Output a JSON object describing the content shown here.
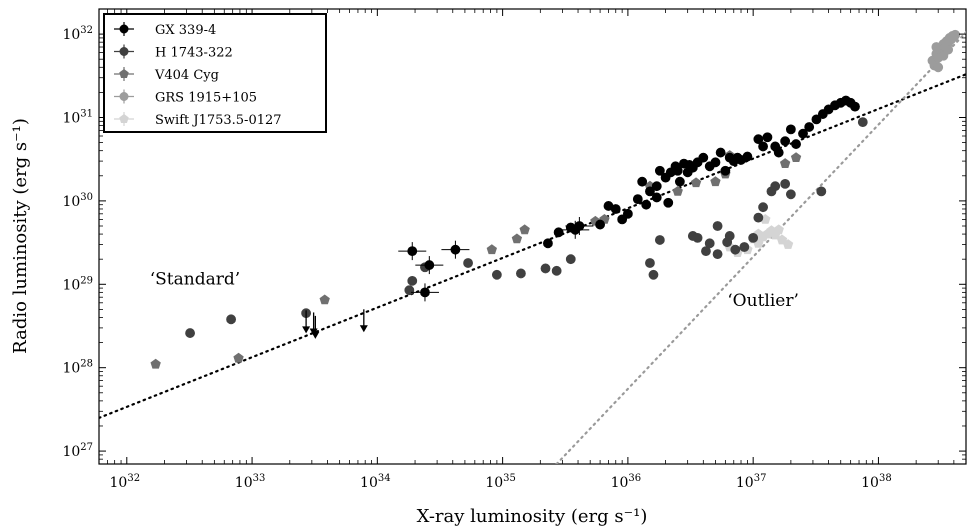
{
  "chart_data": {
    "type": "scatter",
    "xlabel": "X-ray luminosity (erg s⁻¹)",
    "ylabel": "Radio luminosity (erg s⁻¹)",
    "x_scale": "log",
    "y_scale": "log",
    "xlim": [
      6e+31,
      5e+38
    ],
    "ylim": [
      7e+26,
      2e+32
    ],
    "grid": false,
    "legend_placement": "top-left",
    "x_ticks": [
      {
        "base": "10",
        "exp": "32",
        "value": 1e+32
      },
      {
        "base": "10",
        "exp": "33",
        "value": 1e+33
      },
      {
        "base": "10",
        "exp": "34",
        "value": 1e+34
      },
      {
        "base": "10",
        "exp": "35",
        "value": 1e+35
      },
      {
        "base": "10",
        "exp": "36",
        "value": 1e+36
      },
      {
        "base": "10",
        "exp": "37",
        "value": 1e+37
      },
      {
        "base": "10",
        "exp": "38",
        "value": 1e+38
      }
    ],
    "y_ticks": [
      {
        "base": "10",
        "exp": "27",
        "value": 1e+27
      },
      {
        "base": "10",
        "exp": "28",
        "value": 1e+28
      },
      {
        "base": "10",
        "exp": "29",
        "value": 1e+29
      },
      {
        "base": "10",
        "exp": "30",
        "value": 1e+30
      },
      {
        "base": "10",
        "exp": "31",
        "value": 1e+31
      },
      {
        "base": "10",
        "exp": "32",
        "value": 1e+32
      }
    ],
    "annotations": [
      {
        "text": "‘Standard’",
        "x": 3.5e+32,
        "y": 1e+29
      },
      {
        "text": "‘Outlier’",
        "x": 1.2e+37,
        "y": 5.5e+28
      }
    ],
    "fit_lines": [
      {
        "name": "standard",
        "x": [
          6e+31,
          5e+38
        ],
        "y": [
          2.5e+27,
          3.3e+31
        ],
        "color": "#000000"
      },
      {
        "name": "outlier",
        "x": [
          2.7e+35,
          5e+38
        ],
        "y": [
          7e+26,
          1.05e+32
        ],
        "color": "#9a9a9a"
      }
    ],
    "series": [
      {
        "name": "GX 339-4",
        "color": "#000000",
        "marker": "circle",
        "x": [
          1.9e+34,
          2.4e+34,
          2.6e+34,
          4.2e+34,
          2.3e+35,
          2.8e+35,
          3.5e+35,
          3.8e+35,
          4.1e+35,
          6e+35,
          7e+35,
          8e+35,
          9e+35,
          1e+36,
          1.2e+36,
          1.4e+36,
          1.5e+36,
          1.7e+36,
          1.8e+36,
          2e+36,
          2.2e+36,
          2.4e+36,
          2.6e+36,
          2.8e+36,
          3e+36,
          3.3e+36,
          3.6e+36,
          4e+36,
          4.5e+36,
          5e+36,
          5.5e+36,
          6e+36,
          6.5e+36,
          7e+36,
          7.5e+36,
          8e+36,
          9e+36,
          1.1e+37,
          1.2e+37,
          1.3e+37,
          1.5e+37,
          1.6e+37,
          1.8e+37,
          2e+37,
          2.2e+37,
          2.5e+37,
          2.8e+37,
          3.2e+37,
          3.6e+37,
          4e+37,
          4.5e+37,
          5e+37,
          5.5e+37,
          6e+37,
          6.5e+37,
          1.7e+36,
          2.1e+36,
          1.3e+36,
          2.5e+36,
          3.1e+36
        ],
        "y": [
          2.5e+29,
          8e+28,
          1.7e+29,
          2.6e+29,
          3.1e+29,
          4.2e+29,
          4.8e+29,
          4.5e+29,
          5e+29,
          5.2e+29,
          8.7e+29,
          8e+29,
          6e+29,
          7e+29,
          1.05e+30,
          9e+29,
          1.3e+30,
          1.1e+30,
          2.3e+30,
          1.9e+30,
          2.2e+30,
          2.6e+30,
          1.7e+30,
          2.8e+30,
          2.2e+30,
          2.5e+30,
          2.9e+30,
          3.3e+30,
          2.6e+30,
          2.9e+30,
          3.8e+30,
          2.3e+30,
          3.3e+30,
          3e+30,
          3.3e+30,
          3.1e+30,
          3.4e+30,
          5.5e+30,
          4.5e+30,
          5.8e+30,
          4.5e+30,
          3.8e+30,
          5.2e+30,
          7.2e+30,
          4.8e+30,
          6.4e+30,
          7.7e+30,
          9.5e+30,
          1.1e+31,
          1.25e+31,
          1.4e+31,
          1.5e+31,
          1.6e+31,
          1.5e+31,
          1.35e+31,
          1.5e+30,
          9.5e+29,
          1.7e+30,
          2.3e+30,
          2.7e+30
        ]
      },
      {
        "name": "H 1743-322",
        "color": "#404040",
        "marker": "circle",
        "x": [
          3.2e+32,
          6.8e+32,
          2.7e+33,
          1.8e+34,
          1.9e+34,
          2.4e+34,
          5.3e+34,
          9e+34,
          1.4e+35,
          2.2e+35,
          2.7e+35,
          3.5e+35,
          1.5e+36,
          1.6e+36,
          1.8e+36,
          3.3e+36,
          3.6e+36,
          4.2e+36,
          4.5e+36,
          5.2e+36,
          6.2e+36,
          6.5e+36,
          7.2e+36,
          8.5e+36,
          1e+37,
          1.1e+37,
          1.2e+37,
          1.4e+37,
          1.5e+37,
          1.8e+37,
          2e+37,
          3.5e+37,
          7.5e+37,
          5.2e+36
        ],
        "y": [
          2.6e+28,
          3.8e+28,
          4.5e+28,
          8.5e+28,
          1.1e+29,
          1.6e+29,
          1.8e+29,
          1.3e+29,
          1.35e+29,
          1.55e+29,
          1.45e+29,
          2e+29,
          1.8e+29,
          1.3e+29,
          3.4e+29,
          3.8e+29,
          3.6e+29,
          2.5e+29,
          3.1e+29,
          2.3e+29,
          3.2e+29,
          3.8e+29,
          2.6e+29,
          2.8e+29,
          3.6e+29,
          6.3e+29,
          8.4e+29,
          1.3e+30,
          1.5e+30,
          1.6e+30,
          1.2e+30,
          1.3e+30,
          8.8e+30,
          5e+29
        ]
      },
      {
        "name": "V404 Cyg",
        "color": "#707070",
        "marker": "pentagon",
        "x": [
          1.7e+32,
          7.8e+32,
          3.8e+33,
          8.2e+34,
          1.3e+35,
          1.5e+35,
          5.5e+35,
          6.5e+35,
          1.5e+36,
          2.5e+36,
          3.5e+36,
          5e+36,
          6e+36,
          6.5e+36,
          1.8e+37,
          2.2e+37
        ],
        "y": [
          1.1e+28,
          1.3e+28,
          6.5e+28,
          2.6e+29,
          3.5e+29,
          4.5e+29,
          5.7e+29,
          6e+29,
          1.5e+30,
          1.3e+30,
          1.65e+30,
          1.7e+30,
          2.1e+30,
          3.5e+30,
          2.8e+30,
          3.3e+30
        ]
      },
      {
        "name": "GRS 1915+105",
        "color": "#9c9c9c",
        "marker": "circle",
        "x": [
          2.7e+38,
          2.9e+38,
          3.1e+38,
          3.3e+38,
          3.5e+38,
          3.7e+38,
          3.9e+38,
          4.1e+38,
          2.8e+38,
          3e+38,
          3.2e+38,
          3.4e+38,
          3.6e+38,
          3.8e+38,
          4e+38,
          3.3e+38,
          3.6e+38,
          3e+38,
          2.9e+38,
          3.5e+38
        ],
        "y": [
          4.8e+31,
          5.8e+31,
          6.7e+31,
          7.6e+31,
          8.2e+31,
          9e+31,
          9.5e+31,
          9.8e+31,
          4.2e+31,
          5.2e+31,
          6.1e+31,
          7e+31,
          7.8e+31,
          8.6e+31,
          9.2e+31,
          5.5e+31,
          6.5e+31,
          4e+31,
          7e+31,
          8.2e+31
        ]
      },
      {
        "name": "Swift J1753.5-0127",
        "color": "#d4d4d4",
        "marker": "pentagon",
        "x": [
          6.5e+36,
          7.5e+36,
          9e+36,
          1e+37,
          1.1e+37,
          1.2e+37,
          1.3e+37,
          1.4e+37,
          1.5e+37,
          1.7e+37,
          1.9e+37,
          1.1e+37,
          1.25e+37,
          1.6e+37
        ],
        "y": [
          2.8e+29,
          2.4e+29,
          2.6e+29,
          3.5e+29,
          4e+29,
          3.7e+29,
          4e+29,
          4.4e+29,
          3.9e+29,
          3.4e+29,
          3e+29,
          3.1e+29,
          6e+29,
          4.5e+29
        ]
      }
    ],
    "upper_limits": {
      "series": "GX 339-4",
      "x": [
        2.7e+33,
        3.1e+33,
        3.2e+33,
        7.8e+33
      ],
      "y": [
        3.5e+28,
        3.3e+28,
        3e+28,
        3.6e+28
      ]
    }
  }
}
